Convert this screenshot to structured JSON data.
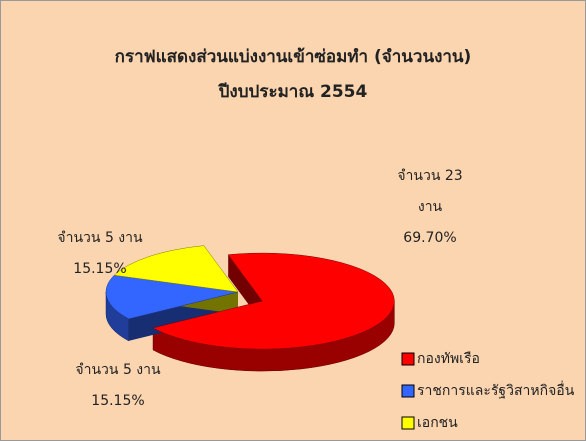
{
  "chart_data": {
    "type": "pie",
    "title": "กราฟแสดงส่วนแบ่งงานเข้าซ่อมทำ (จำนวนงาน)",
    "subtitle": "ปีงบประมาณ 2554",
    "categories": [
      "กองทัพเรือ",
      "ราชการและรัฐวิสาหกิจอื่น",
      "เอกชน"
    ],
    "values": [
      69.7,
      15.15,
      15.15
    ],
    "value_labels": [
      "69.70%",
      "15.15%",
      "15.15%"
    ],
    "count_labels": [
      [
        "จำนวน 23",
        "งาน"
      ],
      [
        "จำนวน 5 งาน"
      ],
      [
        "จำนวน 5 งาน"
      ]
    ],
    "colors": [
      "#ff0000",
      "#3366ff",
      "#ffff00"
    ],
    "legend": "bottom-right"
  }
}
